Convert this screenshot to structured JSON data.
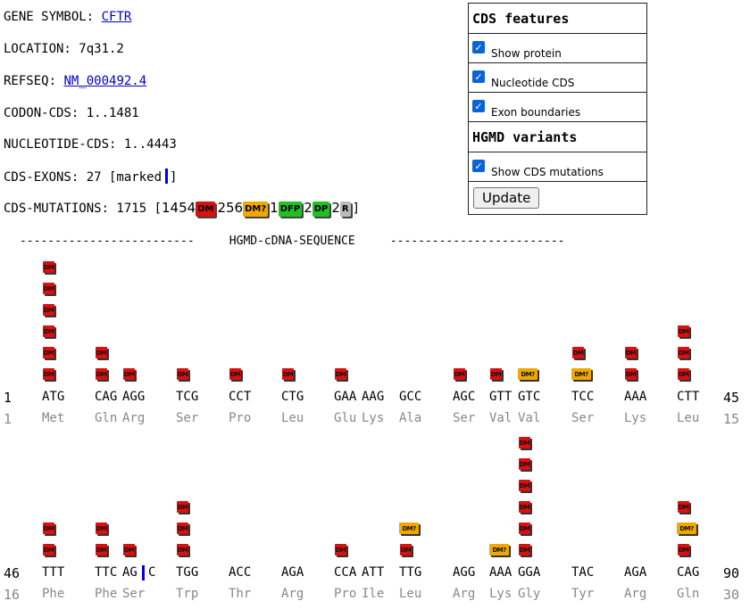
{
  "info": {
    "gene_label": "GENE SYMBOL:",
    "gene_link": "CFTR",
    "location": "LOCATION: 7q31.2",
    "refseq_label": "REFSEQ:",
    "refseq_link": "NM_000492.4",
    "codon_cds": "CODON-CDS: 1..1481",
    "nucleotide_cds": "NUCLEOTIDE-CDS: 1..4443",
    "exons_prefix": "CDS-EXONS: 27 [marked",
    "exons_suffix": "]",
    "mutations_prefix": "CDS-MUTATIONS: 1715 [",
    "mutations_suffix": "]",
    "legend": [
      {
        "count": "1454",
        "badge": "DM",
        "color": "#d81010"
      },
      {
        "count": "256",
        "badge": "DM?",
        "color": "#f0a800"
      },
      {
        "count": "1",
        "badge": "DFP",
        "color": "#22c022"
      },
      {
        "count": "2",
        "badge": "DP",
        "color": "#22c022"
      },
      {
        "count": "2",
        "badge": "R",
        "color": "#bbbbbb"
      }
    ]
  },
  "panel": {
    "cds_title": "CDS features",
    "show_protein": "Show protein",
    "nucleotide_cds": "Nucleotide CDS",
    "exon_boundaries": "Exon boundaries",
    "hgmd_title": "HGMD variants",
    "show_mutations": "Show CDS mutations",
    "update": "Update"
  },
  "sequence": {
    "header": "-------------------------     HGMD-cDNA-SEQUENCE     -------------------------",
    "rows": [
      {
        "start": "1",
        "end": "45",
        "aa_start": "1",
        "aa_end": "15",
        "codons": [
          "ATG",
          "CAG",
          "AGG",
          "TCG",
          "CCT",
          "CTG",
          "GAA",
          "AAG",
          "GCC",
          "AGC",
          "GTT",
          "GTC",
          "TCC",
          "AAA",
          "CTT"
        ],
        "aas": [
          "Met",
          "Gln",
          "Arg",
          "Ser",
          "Pro",
          "Leu",
          "Glu",
          "Lys",
          "Ala",
          "Ser",
          "Val",
          "Val",
          "Ser",
          "Lys",
          "Leu"
        ],
        "mutations": [
          [
            "DM",
            "DM",
            "DM",
            "DM",
            "DM",
            "DM"
          ],
          [
            "DM",
            "DM"
          ],
          [
            "DM"
          ],
          [
            "DM"
          ],
          [
            "DM"
          ],
          [
            "DM"
          ],
          [
            "DM"
          ],
          [],
          [],
          [
            "DM"
          ],
          [
            "DM"
          ],
          [
            "DM?"
          ],
          [
            "DM",
            "DM?"
          ],
          [
            "DM",
            "DM"
          ],
          [
            "DM",
            "DM",
            "DM"
          ]
        ]
      },
      {
        "start": "46",
        "end": "90",
        "aa_start": "16",
        "aa_end": "30",
        "codons": [
          "TTT",
          "TTC",
          "AG",
          "TGG",
          "ACC",
          "AGA",
          "CCA",
          "ATT",
          "TTG",
          "AGG",
          "AAA",
          "GGA",
          "TAC",
          "AGA",
          "CAG"
        ],
        "codon_extra": "C",
        "aas": [
          "Phe",
          "Phe",
          "Ser",
          "Trp",
          "Thr",
          "Arg",
          "Pro",
          "Ile",
          "Leu",
          "Arg",
          "Lys",
          "Gly",
          "Tyr",
          "Arg",
          "Gln"
        ],
        "mutations": [
          [
            "DM",
            "DM"
          ],
          [
            "DM",
            "DM"
          ],
          [
            "DM"
          ],
          [
            "DM",
            "DM",
            "DM"
          ],
          [],
          [],
          [
            "DM"
          ],
          [],
          [
            "DM?",
            "DM"
          ],
          [],
          [
            "DM?"
          ],
          [
            "DM",
            "DM",
            "DM",
            "DM",
            "DM",
            "DM"
          ],
          [],
          [],
          [
            "DM",
            "DM?",
            "DM"
          ]
        ]
      }
    ]
  }
}
